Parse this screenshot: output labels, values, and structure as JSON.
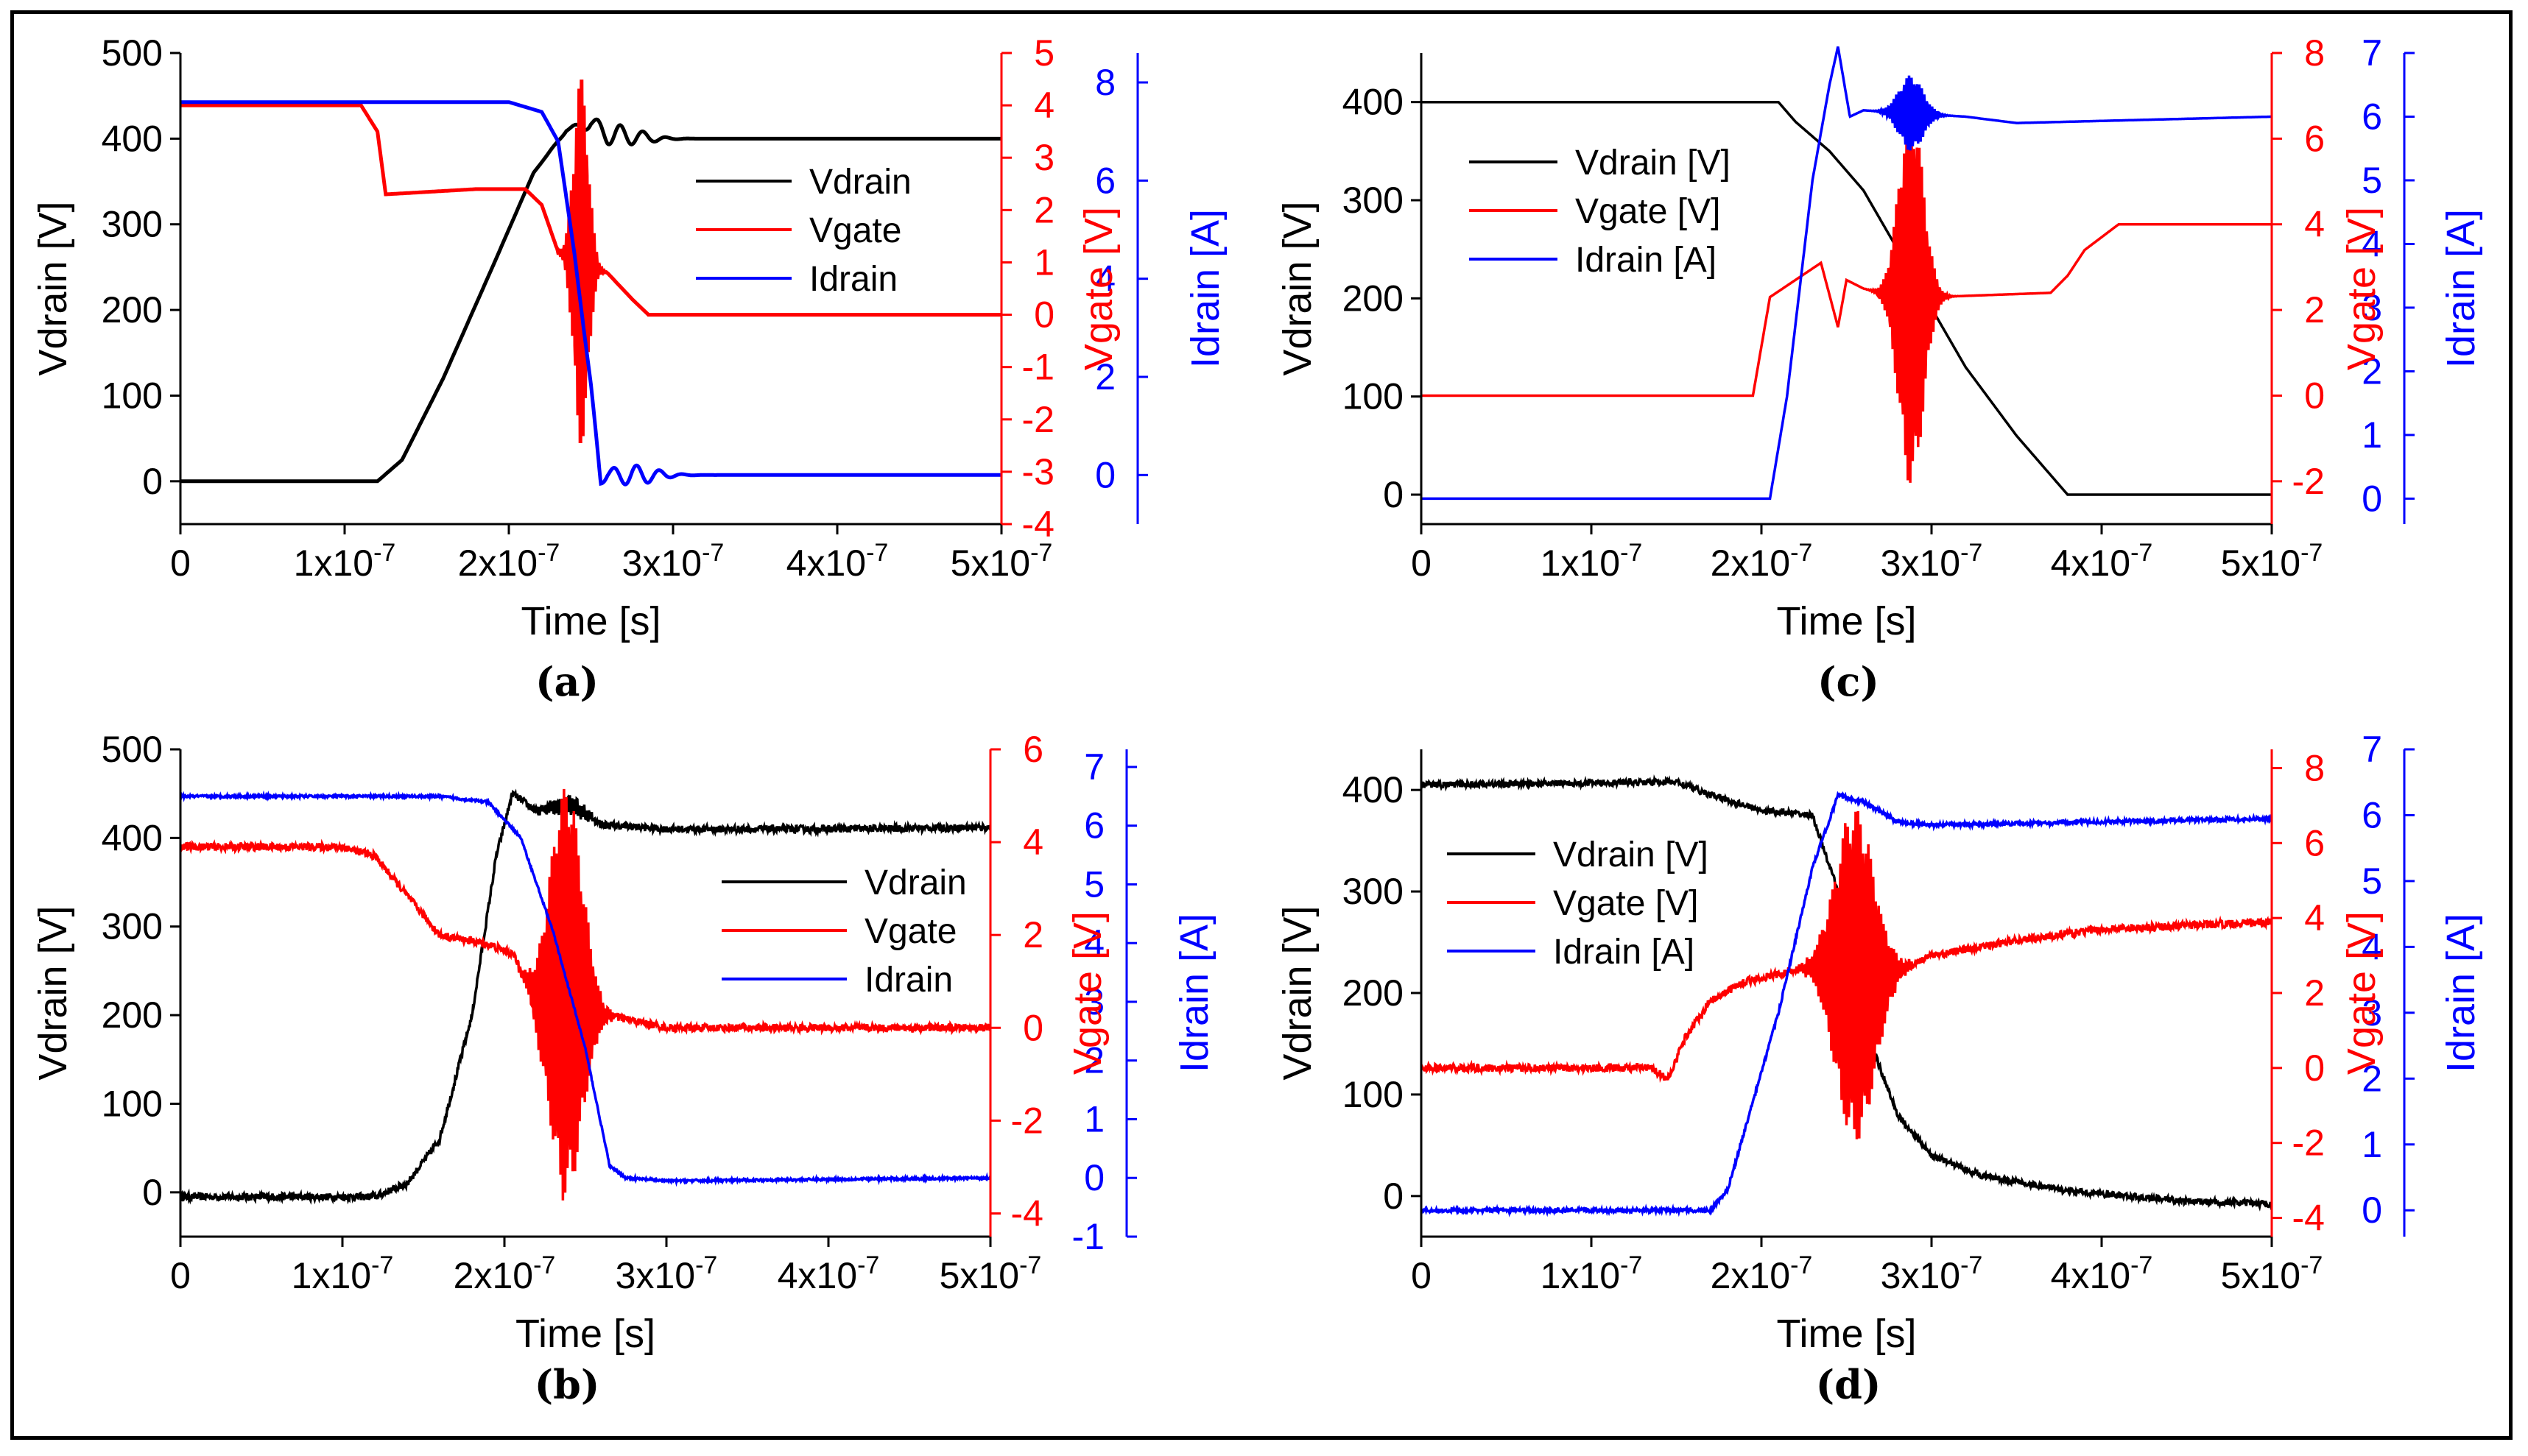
{
  "colors": {
    "vdrain": "#000000",
    "vgate": "#ff0000",
    "idrain": "#0000ff"
  },
  "chart_data": [
    {
      "id": "a",
      "type": "line",
      "caption": "(a)",
      "xlabel": "Time [s]",
      "ylabel_left": "Vdrain [V]",
      "ylabel_right1": "Vgate [V]",
      "ylabel_right2": "Idrain [A]",
      "xlim": [
        0,
        5e-07
      ],
      "ylim_left": [
        -50,
        500
      ],
      "ylim_right1": [
        -4,
        5
      ],
      "ylim_right2": [
        -1,
        8.6
      ],
      "xticks": [
        0,
        1e-07,
        2e-07,
        3e-07,
        4e-07,
        5e-07
      ],
      "xtick_labels": [
        "0",
        "1x10-7",
        "2x10-7",
        "3x10-7",
        "4x10-7",
        "5x10-7"
      ],
      "yticks_left": [
        0,
        100,
        200,
        300,
        400,
        500
      ],
      "yticks_right1": [
        -4,
        -3,
        -2,
        -1,
        0,
        1,
        2,
        3,
        4,
        5
      ],
      "yticks_right2": [
        0,
        2,
        4,
        6,
        8
      ],
      "legend": [
        "Vdrain",
        "Vgate",
        "Idrain"
      ],
      "series": [
        {
          "name": "Vdrain",
          "axis": "left",
          "x": [
            0,
            1.2e-07,
            1.35e-07,
            1.6e-07,
            1.9e-07,
            2.15e-07,
            2.35e-07,
            2.5e-07,
            2.6e-07,
            2.75e-07,
            2.9e-07,
            5e-07
          ],
          "y": [
            0,
            0,
            25,
            120,
            250,
            360,
            410,
            418,
            405,
            403,
            400,
            400
          ],
          "osc": {
            "center": 2.65e-07,
            "width": 2.2e-08,
            "amp": 12,
            "period": 1.4e-08
          }
        },
        {
          "name": "Vgate",
          "axis": "right1",
          "x": [
            0,
            1.1e-07,
            1.2e-07,
            1.25e-07,
            1.8e-07,
            2.1e-07,
            2.2e-07,
            2.3e-07,
            2.45e-07,
            2.6e-07,
            2.75e-07,
            2.85e-07,
            5e-07
          ],
          "y": [
            4,
            4,
            3.5,
            2.3,
            2.4,
            2.4,
            2.1,
            1.2,
            1.0,
            0.8,
            0.3,
            0,
            0
          ],
          "osc": {
            "center": 2.44e-07,
            "width": 6e-09,
            "amp": 3.5,
            "period": 1.5e-09
          }
        },
        {
          "name": "Idrain",
          "axis": "right2",
          "x": [
            0,
            2e-07,
            2.1e-07,
            2.2e-07,
            2.3e-07,
            2.4e-07,
            2.5e-07,
            2.56e-07,
            2.6e-07,
            5e-07
          ],
          "y": [
            7.6,
            7.6,
            7.5,
            7.4,
            6.8,
            4.5,
            1.8,
            -0.1,
            0,
            0
          ],
          "osc": {
            "center": 2.75e-07,
            "width": 2e-08,
            "amp": 0.2,
            "period": 1.4e-08
          }
        }
      ]
    },
    {
      "id": "b",
      "type": "line",
      "caption": "(b)",
      "xlabel": "Time [s]",
      "ylabel_left": "Vdrain [V]",
      "ylabel_right1": "Vgate [V]",
      "ylabel_right2": "Idrain [A]",
      "xlim": [
        0,
        5e-07
      ],
      "ylim_left": [
        -50,
        500
      ],
      "ylim_right1": [
        -4.5,
        6
      ],
      "ylim_right2": [
        -1,
        7.3
      ],
      "xticks": [
        0,
        1e-07,
        2e-07,
        3e-07,
        4e-07,
        5e-07
      ],
      "xtick_labels": [
        "0",
        "1x10-7",
        "2x10-7",
        "3x10-7",
        "4x10-7",
        "5x10-7"
      ],
      "yticks_left": [
        0,
        100,
        200,
        300,
        400,
        500
      ],
      "yticks_right1": [
        -4,
        -2,
        0,
        2,
        4,
        6
      ],
      "yticks_right2": [
        -1,
        0,
        1,
        2,
        3,
        4,
        5,
        6,
        7
      ],
      "legend": [
        "Vdrain",
        "Vgate",
        "Idrain"
      ],
      "series": [
        {
          "name": "Vdrain",
          "axis": "left",
          "x": [
            0,
            1.2e-07,
            1.4e-07,
            1.6e-07,
            1.8e-07,
            1.95e-07,
            2.05e-07,
            2.2e-07,
            2.4e-07,
            2.6e-07,
            3e-07,
            4e-07,
            5e-07
          ],
          "y": [
            -5,
            -5,
            10,
            60,
            200,
            380,
            450,
            430,
            440,
            415,
            410,
            410,
            412
          ],
          "noise": 4,
          "osc": {
            "center": 2.4e-07,
            "width": 1.5e-08,
            "amp": 10,
            "period": 1.5e-09
          }
        },
        {
          "name": "Vgate",
          "axis": "right1",
          "x": [
            0,
            1e-07,
            1.2e-07,
            1.6e-07,
            1.9e-07,
            2.05e-07,
            2.2e-07,
            2.4e-07,
            2.6e-07,
            3e-07,
            5e-07
          ],
          "y": [
            3.9,
            3.9,
            3.7,
            2,
            1.8,
            1.6,
            0.6,
            0.8,
            0.3,
            0,
            0
          ],
          "noise": 0.08,
          "osc": {
            "center": 2.38e-07,
            "width": 1.4e-08,
            "amp": 4.5,
            "period": 1.5e-09
          }
        },
        {
          "name": "Idrain",
          "axis": "right2",
          "x": [
            0,
            1.6e-07,
            1.9e-07,
            2.1e-07,
            2.3e-07,
            2.5e-07,
            2.65e-07,
            2.75e-07,
            3e-07,
            5e-07
          ],
          "y": [
            6.5,
            6.5,
            6.4,
            5.8,
            4.2,
            2.2,
            0.2,
            0,
            -0.05,
            0
          ],
          "noise": 0.02
        }
      ]
    },
    {
      "id": "c",
      "type": "line",
      "caption": "(c)",
      "xlabel": "Time [s]",
      "ylabel_left": "Vdrain [V]",
      "ylabel_right1": "Vgate [V]",
      "ylabel_right2": "Idrain [A]",
      "xlim": [
        0,
        5e-07
      ],
      "ylim_left": [
        -30,
        450
      ],
      "ylim_right1": [
        -3,
        8
      ],
      "ylim_right2": [
        -0.4,
        7
      ],
      "xticks": [
        0,
        1e-07,
        2e-07,
        3e-07,
        4e-07,
        5e-07
      ],
      "xtick_labels": [
        "0",
        "1x10-7",
        "2x10-7",
        "3x10-7",
        "4x10-7",
        "5x10-7"
      ],
      "yticks_left": [
        0,
        100,
        200,
        300,
        400
      ],
      "yticks_right1": [
        -2,
        0,
        2,
        4,
        6,
        8
      ],
      "yticks_right2": [
        0,
        1,
        2,
        3,
        4,
        5,
        6,
        7
      ],
      "legend": [
        "Vdrain [V]",
        "Vgate [V]",
        "Idrain [A]"
      ],
      "series": [
        {
          "name": "Vdrain [V]",
          "axis": "left",
          "x": [
            0,
            2.1e-07,
            2.2e-07,
            2.4e-07,
            2.6e-07,
            2.8e-07,
            3e-07,
            3.2e-07,
            3.5e-07,
            3.8e-07,
            5e-07
          ],
          "y": [
            400,
            400,
            380,
            350,
            310,
            250,
            190,
            130,
            60,
            0,
            0
          ]
        },
        {
          "name": "Vgate [V]",
          "axis": "right1",
          "x": [
            0,
            1.95e-07,
            2.05e-07,
            2.2e-07,
            2.35e-07,
            2.45e-07,
            2.5e-07,
            2.6e-07,
            2.7e-07,
            3e-07,
            3.7e-07,
            3.8e-07,
            3.9e-07,
            4.1e-07,
            5e-07
          ],
          "y": [
            0,
            0,
            2.3,
            2.7,
            3.1,
            1.6,
            2.7,
            2.5,
            2.4,
            2.3,
            2.4,
            2.8,
            3.4,
            4,
            4
          ],
          "osc": {
            "center": 2.88e-07,
            "width": 1e-08,
            "amp": 4.5,
            "period": 1.5e-09
          }
        },
        {
          "name": "Idrain [A]",
          "axis": "right2",
          "x": [
            0,
            2.05e-07,
            2.15e-07,
            2.3e-07,
            2.4e-07,
            2.45e-07,
            2.52e-07,
            2.6e-07,
            3.2e-07,
            3.5e-07,
            5e-07
          ],
          "y": [
            0,
            0,
            1.6,
            5.0,
            6.5,
            7.1,
            6.0,
            6.1,
            6.0,
            5.9,
            6.0
          ],
          "osc": {
            "center": 2.88e-07,
            "width": 1e-08,
            "amp": 0.6,
            "period": 1.5e-09
          }
        }
      ]
    },
    {
      "id": "d",
      "type": "line",
      "caption": "(d)",
      "xlabel": "Time [s]",
      "ylabel_left": "Vdrain [V]",
      "ylabel_right1": "Vgate [V]",
      "ylabel_right2": "Idrain [A]",
      "xlim": [
        0,
        5e-07
      ],
      "ylim_left": [
        -40,
        440
      ],
      "ylim_right1": [
        -4.5,
        8.5
      ],
      "ylim_right2": [
        -0.4,
        7
      ],
      "xticks": [
        0,
        1e-07,
        2e-07,
        3e-07,
        4e-07,
        5e-07
      ],
      "xtick_labels": [
        "0",
        "1x10-7",
        "2x10-7",
        "3x10-7",
        "4x10-7",
        "5x10-7"
      ],
      "yticks_left": [
        0,
        100,
        200,
        300,
        400
      ],
      "yticks_right1": [
        -4,
        -2,
        0,
        2,
        4,
        6,
        8
      ],
      "yticks_right2": [
        0,
        1,
        2,
        3,
        4,
        5,
        6,
        7
      ],
      "legend": [
        "Vdrain [V]",
        "Vgate [V]",
        "Idrain [A]"
      ],
      "series": [
        {
          "name": "Vdrain [V]",
          "axis": "left",
          "x": [
            0,
            1.5e-07,
            1.7e-07,
            2e-07,
            2.3e-07,
            2.45e-07,
            2.6e-07,
            2.8e-07,
            3e-07,
            3.3e-07,
            3.8e-07,
            4.5e-07,
            5e-07
          ],
          "y": [
            405,
            408,
            395,
            380,
            375,
            300,
            170,
            80,
            40,
            20,
            5,
            -5,
            -8
          ],
          "noise": 3
        },
        {
          "name": "Vgate [V]",
          "axis": "right1",
          "x": [
            0,
            1.35e-07,
            1.45e-07,
            1.55e-07,
            1.7e-07,
            1.9e-07,
            2.1e-07,
            2.3e-07,
            2.5e-07,
            2.7e-07,
            3e-07,
            3.5e-07,
            4e-07,
            5e-07
          ],
          "y": [
            0,
            0,
            -0.3,
            0.8,
            1.8,
            2.3,
            2.5,
            2.7,
            2.5,
            2.4,
            3.0,
            3.4,
            3.7,
            3.9
          ],
          "noise": 0.1,
          "osc": {
            "center": 2.55e-07,
            "width": 1.6e-08,
            "amp": 4.5,
            "period": 1.5e-09
          }
        },
        {
          "name": "Idrain [A]",
          "axis": "right2",
          "x": [
            0,
            1.7e-07,
            1.8e-07,
            2.1e-07,
            2.3e-07,
            2.45e-07,
            2.6e-07,
            2.8e-07,
            3e-07,
            5e-07
          ],
          "y": [
            0,
            0,
            0.3,
            3.0,
            5.2,
            6.3,
            6.2,
            5.9,
            5.85,
            5.95
          ],
          "noise": 0.03
        }
      ]
    }
  ]
}
